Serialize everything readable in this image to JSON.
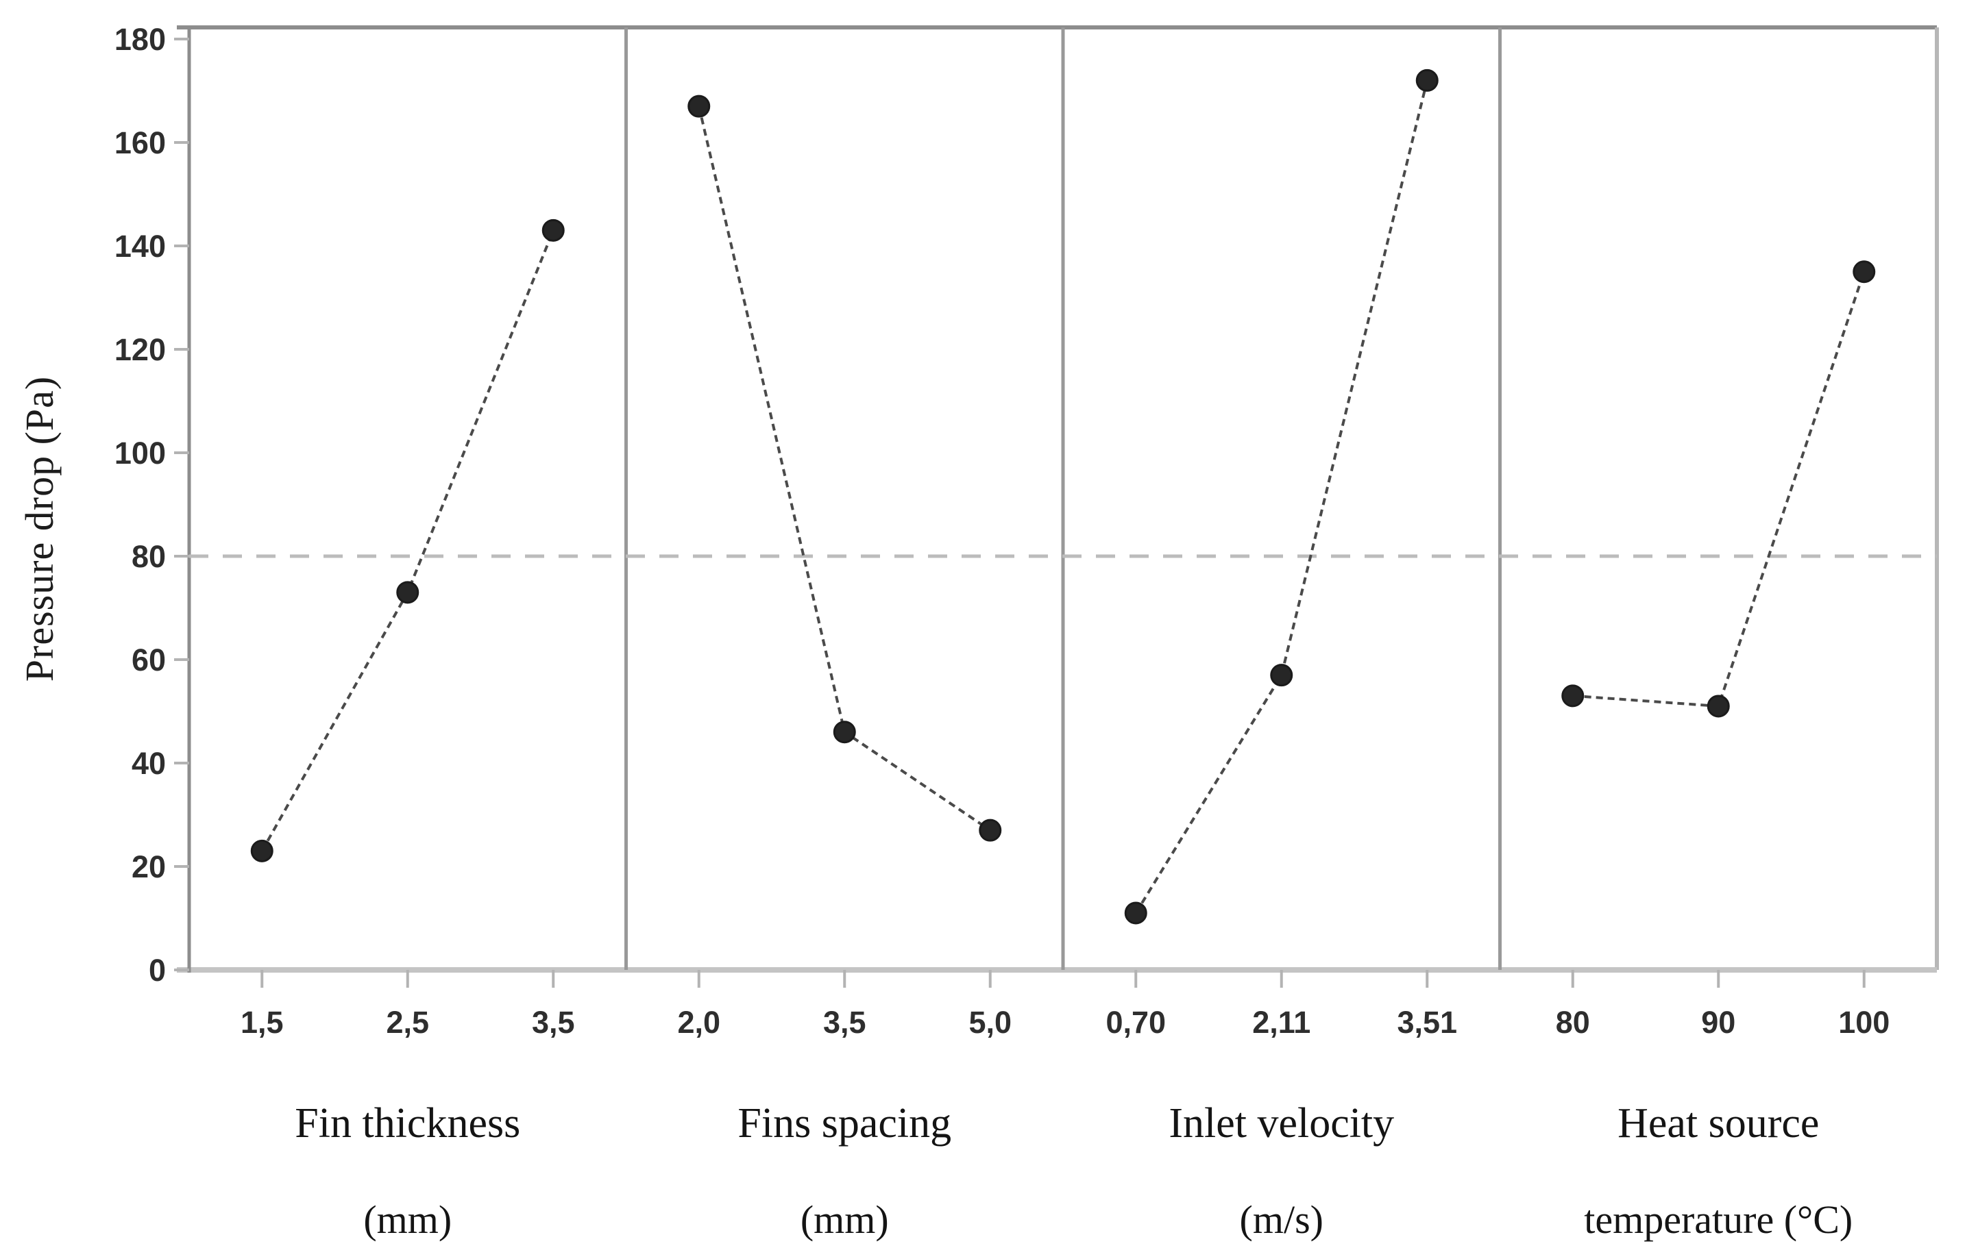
{
  "chart_data": {
    "type": "line",
    "title": "",
    "ylabel": "Pressure drop (Pa)",
    "ylim": [
      0,
      180
    ],
    "yticks": [
      0,
      20,
      40,
      60,
      80,
      100,
      120,
      140,
      160,
      180
    ],
    "mean_line": 80,
    "grid": "off",
    "legend": "none",
    "decimal_separator": "comma",
    "panels": [
      {
        "factor_line1": "Fin thickness",
        "factor_line2": "(mm)",
        "categories": [
          "1,5",
          "2,5",
          "3,5"
        ],
        "values": [
          23,
          73,
          143
        ]
      },
      {
        "factor_line1": "Fins spacing",
        "factor_line2": "(mm)",
        "categories": [
          "2,0",
          "3,5",
          "5,0"
        ],
        "values": [
          167,
          46,
          27
        ]
      },
      {
        "factor_line1": "Inlet velocity",
        "factor_line2": "(m/s)",
        "categories": [
          "0,70",
          "2,11",
          "3,51"
        ],
        "values": [
          11,
          57,
          172
        ]
      },
      {
        "factor_line1": "Heat source",
        "factor_line2": "temperature (°C)",
        "categories": [
          "80",
          "90",
          "100"
        ],
        "values": [
          53,
          51,
          135
        ]
      }
    ],
    "colors": {
      "background": "#ffffff",
      "axis_line": "#8d8d8d",
      "frame_line": "#b7b7b7",
      "bottom_axis": "#c4c4c4",
      "separator": "#999999",
      "tick_mark": "#b3b3b3",
      "tick_label": "#2e2e2e",
      "series_line": "#4a4a4a",
      "marker": "#262626",
      "mean_line": "#bcbcbc"
    }
  }
}
